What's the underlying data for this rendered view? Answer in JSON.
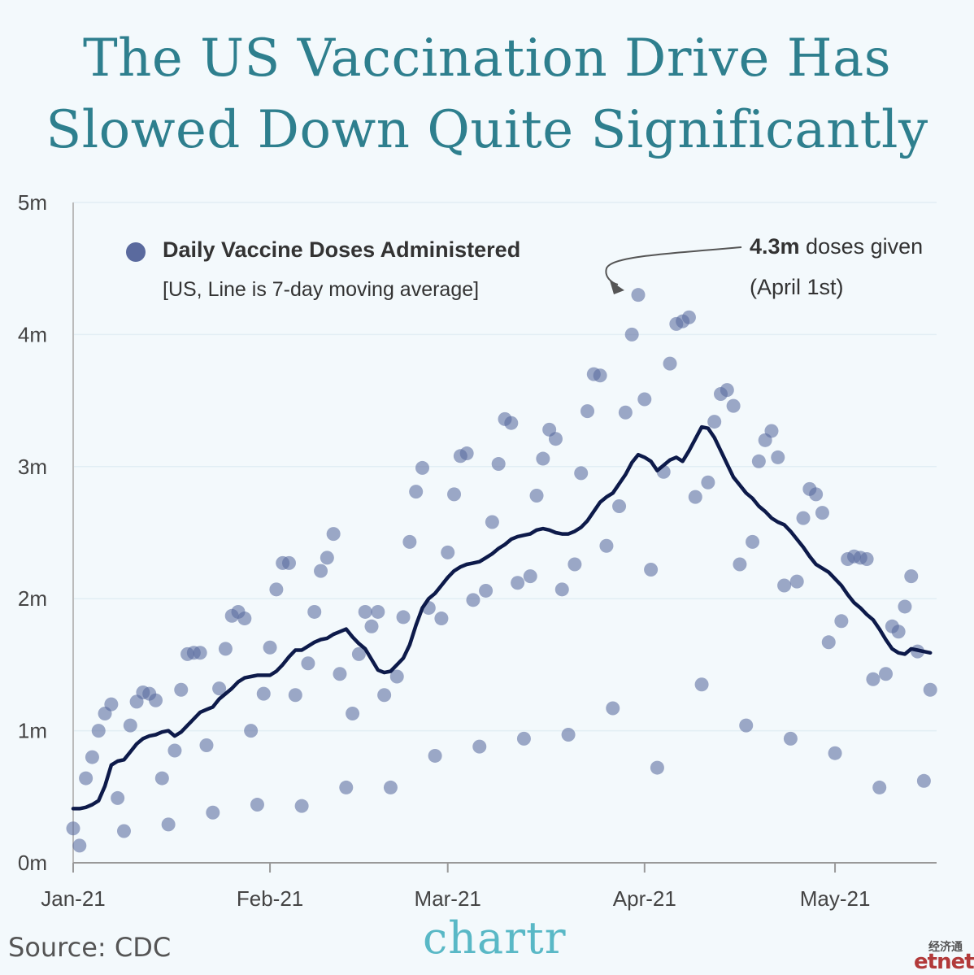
{
  "title": {
    "line1": "The US Vaccination Drive Has",
    "line2": "Slowed Down Quite Significantly"
  },
  "source": "Source: CDC",
  "brand": "chartr",
  "watermark": {
    "chinese": "经济通",
    "latin": "etnet"
  },
  "colors": {
    "title": "#2e7f8e",
    "dots": "#5a6a9e",
    "line": "#0d1a4a",
    "brand": "#59b8c6",
    "background": "#f3f9fc"
  },
  "chart_data": {
    "type": "scatter",
    "ylim": [
      0,
      5
    ],
    "y_ticks": [
      "0m",
      "1m",
      "2m",
      "3m",
      "4m",
      "5m"
    ],
    "x_ticks": [
      {
        "label": "Jan-21",
        "day": 1
      },
      {
        "label": "Feb-21",
        "day": 32
      },
      {
        "label": "Mar-21",
        "day": 60
      },
      {
        "label": "Apr-21",
        "day": 91
      },
      {
        "label": "May-21",
        "day": 121
      }
    ],
    "x_end_day": 136,
    "legend": {
      "marker": "dot",
      "label": "Daily Vaccine Doses Administered",
      "sublabel": "[US, Line is 7-day moving average]"
    },
    "annotation": {
      "bold": "4.3m",
      "text": " doses given",
      "line2": "(April 1st)",
      "target_day": 90,
      "target_value": 4.3
    },
    "series": [
      {
        "name": "Daily Vaccine Doses Administered",
        "kind": "scatter",
        "points": [
          [
            1,
            0.26
          ],
          [
            2,
            0.13
          ],
          [
            3,
            0.64
          ],
          [
            4,
            0.8
          ],
          [
            5,
            1.0
          ],
          [
            6,
            1.13
          ],
          [
            7,
            1.2
          ],
          [
            8,
            0.49
          ],
          [
            9,
            0.24
          ],
          [
            10,
            1.04
          ],
          [
            11,
            1.22
          ],
          [
            12,
            1.29
          ],
          [
            13,
            1.28
          ],
          [
            14,
            1.23
          ],
          [
            15,
            0.64
          ],
          [
            16,
            0.29
          ],
          [
            17,
            0.85
          ],
          [
            18,
            1.31
          ],
          [
            19,
            1.58
          ],
          [
            20,
            1.59
          ],
          [
            21,
            1.59
          ],
          [
            22,
            0.89
          ],
          [
            23,
            0.38
          ],
          [
            24,
            1.32
          ],
          [
            25,
            1.62
          ],
          [
            26,
            1.87
          ],
          [
            27,
            1.9
          ],
          [
            28,
            1.85
          ],
          [
            29,
            1.0
          ],
          [
            30,
            0.44
          ],
          [
            31,
            1.28
          ],
          [
            32,
            1.63
          ],
          [
            33,
            2.07
          ],
          [
            34,
            2.27
          ],
          [
            35,
            2.27
          ],
          [
            36,
            1.27
          ],
          [
            37,
            0.43
          ],
          [
            38,
            1.51
          ],
          [
            39,
            1.9
          ],
          [
            40,
            2.21
          ],
          [
            41,
            2.31
          ],
          [
            42,
            2.49
          ],
          [
            43,
            1.43
          ],
          [
            44,
            0.57
          ],
          [
            45,
            1.13
          ],
          [
            46,
            1.58
          ],
          [
            47,
            1.9
          ],
          [
            48,
            1.79
          ],
          [
            49,
            1.9
          ],
          [
            50,
            1.27
          ],
          [
            51,
            0.57
          ],
          [
            52,
            1.41
          ],
          [
            53,
            1.86
          ],
          [
            54,
            2.43
          ],
          [
            55,
            2.81
          ],
          [
            56,
            2.99
          ],
          [
            57,
            1.93
          ],
          [
            58,
            0.81
          ],
          [
            59,
            1.85
          ],
          [
            60,
            2.35
          ],
          [
            61,
            2.79
          ],
          [
            62,
            3.08
          ],
          [
            63,
            3.1
          ],
          [
            64,
            1.99
          ],
          [
            65,
            0.88
          ],
          [
            66,
            2.06
          ],
          [
            67,
            2.58
          ],
          [
            68,
            3.02
          ],
          [
            69,
            3.36
          ],
          [
            70,
            3.33
          ],
          [
            71,
            2.12
          ],
          [
            72,
            0.94
          ],
          [
            73,
            2.17
          ],
          [
            74,
            2.78
          ],
          [
            75,
            3.06
          ],
          [
            76,
            3.28
          ],
          [
            77,
            3.21
          ],
          [
            78,
            2.07
          ],
          [
            79,
            0.97
          ],
          [
            80,
            2.26
          ],
          [
            81,
            2.95
          ],
          [
            82,
            3.42
          ],
          [
            83,
            3.7
          ],
          [
            84,
            3.69
          ],
          [
            85,
            2.4
          ],
          [
            86,
            1.17
          ],
          [
            87,
            2.7
          ],
          [
            88,
            3.41
          ],
          [
            89,
            4.0
          ],
          [
            90,
            4.3
          ],
          [
            91,
            3.51
          ],
          [
            92,
            2.22
          ],
          [
            93,
            0.72
          ],
          [
            94,
            2.96
          ],
          [
            95,
            3.78
          ],
          [
            96,
            4.08
          ],
          [
            97,
            4.1
          ],
          [
            98,
            4.13
          ],
          [
            99,
            2.77
          ],
          [
            100,
            1.35
          ],
          [
            101,
            2.88
          ],
          [
            102,
            3.34
          ],
          [
            103,
            3.55
          ],
          [
            104,
            3.58
          ],
          [
            105,
            3.46
          ],
          [
            106,
            2.26
          ],
          [
            107,
            1.04
          ],
          [
            108,
            2.43
          ],
          [
            109,
            3.04
          ],
          [
            110,
            3.2
          ],
          [
            111,
            3.27
          ],
          [
            112,
            3.07
          ],
          [
            113,
            2.1
          ],
          [
            114,
            0.94
          ],
          [
            115,
            2.13
          ],
          [
            116,
            2.61
          ],
          [
            117,
            2.83
          ],
          [
            118,
            2.79
          ],
          [
            119,
            2.65
          ],
          [
            120,
            1.67
          ],
          [
            121,
            0.83
          ],
          [
            122,
            1.83
          ],
          [
            123,
            2.3
          ],
          [
            124,
            2.32
          ],
          [
            125,
            2.31
          ],
          [
            126,
            2.3
          ],
          [
            127,
            1.39
          ],
          [
            128,
            0.57
          ],
          [
            129,
            1.43
          ],
          [
            130,
            1.79
          ],
          [
            131,
            1.75
          ],
          [
            132,
            1.94
          ],
          [
            133,
            2.17
          ],
          [
            134,
            1.6
          ],
          [
            135,
            0.62
          ],
          [
            136,
            1.31
          ]
        ]
      },
      {
        "name": "7-day moving average",
        "kind": "line",
        "points": [
          [
            1,
            0.41
          ],
          [
            2,
            0.41
          ],
          [
            3,
            0.42
          ],
          [
            4,
            0.44
          ],
          [
            5,
            0.47
          ],
          [
            6,
            0.58
          ],
          [
            7,
            0.74
          ],
          [
            8,
            0.77
          ],
          [
            9,
            0.78
          ],
          [
            10,
            0.84
          ],
          [
            11,
            0.9
          ],
          [
            12,
            0.94
          ],
          [
            13,
            0.96
          ],
          [
            14,
            0.97
          ],
          [
            15,
            0.99
          ],
          [
            16,
            1.0
          ],
          [
            17,
            0.96
          ],
          [
            18,
            0.99
          ],
          [
            19,
            1.04
          ],
          [
            20,
            1.09
          ],
          [
            21,
            1.14
          ],
          [
            22,
            1.16
          ],
          [
            23,
            1.18
          ],
          [
            24,
            1.24
          ],
          [
            25,
            1.28
          ],
          [
            26,
            1.32
          ],
          [
            27,
            1.37
          ],
          [
            28,
            1.4
          ],
          [
            29,
            1.41
          ],
          [
            30,
            1.42
          ],
          [
            31,
            1.42
          ],
          [
            32,
            1.42
          ],
          [
            33,
            1.45
          ],
          [
            34,
            1.5
          ],
          [
            35,
            1.56
          ],
          [
            36,
            1.61
          ],
          [
            37,
            1.61
          ],
          [
            38,
            1.64
          ],
          [
            39,
            1.67
          ],
          [
            40,
            1.69
          ],
          [
            41,
            1.7
          ],
          [
            42,
            1.73
          ],
          [
            43,
            1.75
          ],
          [
            44,
            1.77
          ],
          [
            45,
            1.71
          ],
          [
            46,
            1.66
          ],
          [
            47,
            1.62
          ],
          [
            48,
            1.54
          ],
          [
            49,
            1.46
          ],
          [
            50,
            1.44
          ],
          [
            51,
            1.45
          ],
          [
            52,
            1.5
          ],
          [
            53,
            1.55
          ],
          [
            54,
            1.65
          ],
          [
            55,
            1.8
          ],
          [
            56,
            1.93
          ],
          [
            57,
            2.0
          ],
          [
            58,
            2.04
          ],
          [
            59,
            2.1
          ],
          [
            60,
            2.16
          ],
          [
            61,
            2.21
          ],
          [
            62,
            2.24
          ],
          [
            63,
            2.26
          ],
          [
            64,
            2.27
          ],
          [
            65,
            2.28
          ],
          [
            66,
            2.31
          ],
          [
            67,
            2.34
          ],
          [
            68,
            2.38
          ],
          [
            69,
            2.41
          ],
          [
            70,
            2.45
          ],
          [
            71,
            2.47
          ],
          [
            72,
            2.48
          ],
          [
            73,
            2.49
          ],
          [
            74,
            2.52
          ],
          [
            75,
            2.53
          ],
          [
            76,
            2.52
          ],
          [
            77,
            2.5
          ],
          [
            78,
            2.49
          ],
          [
            79,
            2.49
          ],
          [
            80,
            2.51
          ],
          [
            81,
            2.54
          ],
          [
            82,
            2.59
          ],
          [
            83,
            2.66
          ],
          [
            84,
            2.73
          ],
          [
            85,
            2.77
          ],
          [
            86,
            2.8
          ],
          [
            87,
            2.87
          ],
          [
            88,
            2.94
          ],
          [
            89,
            3.03
          ],
          [
            90,
            3.09
          ],
          [
            91,
            3.07
          ],
          [
            92,
            3.04
          ],
          [
            93,
            2.97
          ],
          [
            94,
            3.01
          ],
          [
            95,
            3.05
          ],
          [
            96,
            3.07
          ],
          [
            97,
            3.04
          ],
          [
            98,
            3.12
          ],
          [
            99,
            3.21
          ],
          [
            100,
            3.3
          ],
          [
            101,
            3.29
          ],
          [
            102,
            3.22
          ],
          [
            103,
            3.12
          ],
          [
            104,
            3.02
          ],
          [
            105,
            2.92
          ],
          [
            106,
            2.86
          ],
          [
            107,
            2.8
          ],
          [
            108,
            2.76
          ],
          [
            109,
            2.7
          ],
          [
            110,
            2.66
          ],
          [
            111,
            2.61
          ],
          [
            112,
            2.58
          ],
          [
            113,
            2.56
          ],
          [
            114,
            2.51
          ],
          [
            115,
            2.45
          ],
          [
            116,
            2.39
          ],
          [
            117,
            2.32
          ],
          [
            118,
            2.26
          ],
          [
            119,
            2.23
          ],
          [
            120,
            2.2
          ],
          [
            121,
            2.15
          ],
          [
            122,
            2.1
          ],
          [
            123,
            2.03
          ],
          [
            124,
            1.97
          ],
          [
            125,
            1.93
          ],
          [
            126,
            1.88
          ],
          [
            127,
            1.84
          ],
          [
            128,
            1.77
          ],
          [
            129,
            1.69
          ],
          [
            130,
            1.62
          ],
          [
            131,
            1.59
          ],
          [
            132,
            1.58
          ],
          [
            133,
            1.62
          ],
          [
            134,
            1.61
          ],
          [
            135,
            1.6
          ],
          [
            136,
            1.59
          ]
        ]
      }
    ]
  }
}
